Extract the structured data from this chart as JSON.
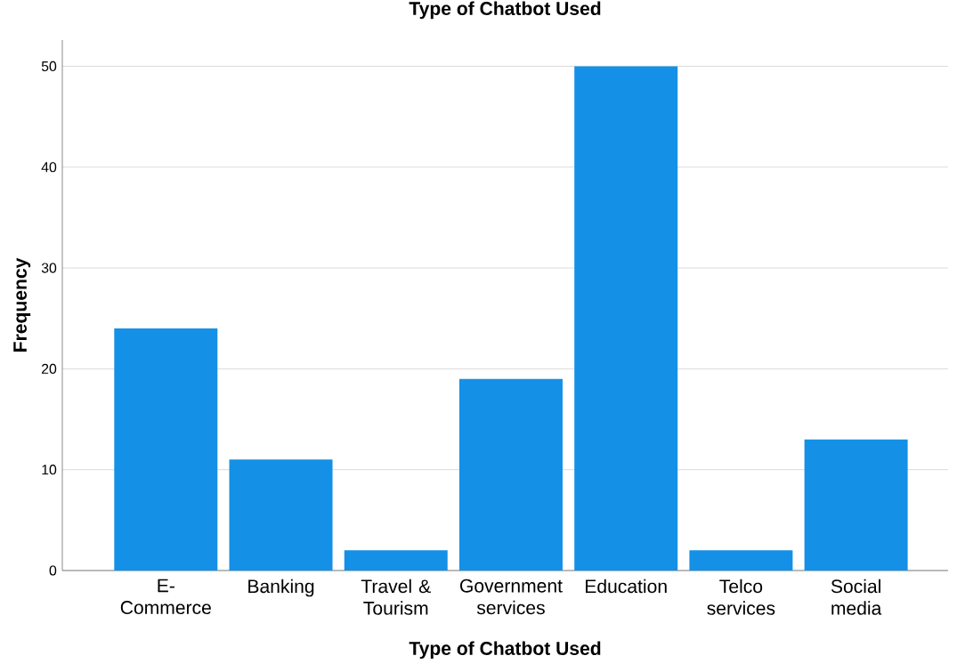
{
  "chart_data": {
    "type": "bar",
    "title": "Type of Chatbot Used",
    "xlabel": "Type of Chatbot Used",
    "ylabel": "Frequency",
    "categories": [
      "E-Commerce",
      "Banking",
      "Travel & Tourism",
      "Government services",
      "Education",
      "Telco services",
      "Social media"
    ],
    "values": [
      24,
      11,
      2,
      19,
      50,
      2,
      13
    ],
    "color": "#1491e6",
    "ylim": [
      0,
      52.6
    ],
    "yticks": [
      0,
      10,
      20,
      30,
      40,
      50
    ],
    "grid": "y"
  }
}
